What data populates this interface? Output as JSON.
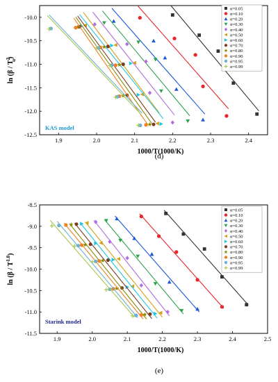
{
  "chart_data": [
    {
      "type": "scatter",
      "panel_label": "(d)",
      "model_label": "KAS model",
      "model_label_color": "#1e9ad6",
      "xlabel": "1000/T(1000/K)",
      "ylabel": "ln (β / T",
      "ylabel_sup": "2",
      "ylabel_sub": "α",
      "ylabel_close": ")",
      "xlim": [
        1.85,
        2.45
      ],
      "ylim": [
        -12.5,
        -9.75
      ],
      "xticks": [
        "1.9",
        "2.0",
        "2.1",
        "2.2",
        "2.3",
        "2.4"
      ],
      "yticks": [
        "-10.0",
        "-10.5",
        "-11.0",
        "-11.5",
        "-12.0",
        "-12.5"
      ],
      "series": [
        {
          "name": "α=0.05",
          "color": "#333333",
          "marker": "square",
          "x": [
            2.422,
            2.36,
            2.32,
            2.27,
            2.2
          ],
          "y": [
            -12.06,
            -11.4,
            -10.72,
            -10.38,
            -9.95
          ]
        },
        {
          "name": "α=0.10",
          "color": "#e8252a",
          "marker": "circle",
          "x": [
            2.342,
            2.28,
            2.26,
            2.205,
            2.114
          ],
          "y": [
            -12.1,
            -11.47,
            -10.8,
            -10.45,
            -10.01
          ]
        },
        {
          "name": "α=0.20",
          "color": "#1a58d8",
          "marker": "triangle-up",
          "x": [
            2.28,
            2.21,
            2.18,
            2.15,
            2.045
          ],
          "y": [
            -12.18,
            -11.53,
            -10.86,
            -10.5,
            -10.08
          ]
        },
        {
          "name": "α=0.30",
          "color": "#2ea34a",
          "marker": "triangle-down",
          "x": [
            2.24,
            2.17,
            2.155,
            2.11,
            2.02
          ],
          "y": [
            -12.21,
            -11.57,
            -10.9,
            -10.53,
            -10.12
          ]
        },
        {
          "name": "α=0.40",
          "color": "#b26be0",
          "marker": "diamond",
          "x": [
            2.2,
            2.14,
            2.13,
            2.08,
            1.995
          ],
          "y": [
            -12.24,
            -11.61,
            -10.94,
            -10.57,
            -10.15
          ]
        },
        {
          "name": "α=0.50",
          "color": "#d4a017",
          "marker": "triangle-left",
          "x": [
            2.16,
            2.12,
            2.1,
            2.05,
            1.97
          ],
          "y": [
            -12.26,
            -11.64,
            -10.97,
            -10.59,
            -10.17
          ]
        },
        {
          "name": "α=0.60",
          "color": "#1ec6e0",
          "marker": "triangle-right",
          "x": [
            2.17,
            2.11,
            2.09,
            2.04,
            1.96
          ],
          "y": [
            -12.27,
            -11.65,
            -10.98,
            -10.6,
            -10.19
          ]
        },
        {
          "name": "α=0.70",
          "color": "#7a3b22",
          "marker": "hexagon",
          "x": [
            2.15,
            2.08,
            2.07,
            2.03,
            1.955
          ],
          "y": [
            -12.28,
            -11.66,
            -11.0,
            -10.62,
            -10.2
          ]
        },
        {
          "name": "α=0.80",
          "color": "#8a8a00",
          "marker": "star",
          "x": [
            2.14,
            2.07,
            2.06,
            2.02,
            1.95
          ],
          "y": [
            -12.28,
            -11.67,
            -11.01,
            -10.63,
            -10.21
          ]
        },
        {
          "name": "α=0.90",
          "color": "#f08020",
          "marker": "circle",
          "x": [
            2.13,
            2.06,
            2.05,
            2.01,
            1.945
          ],
          "y": [
            -12.29,
            -11.68,
            -11.02,
            -10.64,
            -10.22
          ]
        },
        {
          "name": "α=0.95",
          "color": "#6bb0d8",
          "marker": "circle",
          "x": [
            2.115,
            2.055,
            2.04,
            2.005,
            1.88
          ],
          "y": [
            -12.3,
            -11.69,
            -11.02,
            -10.65,
            -10.24
          ]
        },
        {
          "name": "α=0.99",
          "color": "#a6c84a",
          "marker": "plus",
          "x": [
            2.11,
            2.05,
            2.035,
            2.0,
            1.875
          ],
          "y": [
            -12.3,
            -11.7,
            -11.03,
            -10.65,
            -10.25
          ]
        }
      ]
    },
    {
      "type": "scatter",
      "panel_label": "(e)",
      "model_label": "Starink model",
      "model_label_color": "#1f2a8a",
      "xlabel": "1000/T(1000/K)",
      "ylabel": "ln (β / T",
      "ylabel_sup": "1.8",
      "ylabel_sub": "",
      "ylabel_close": ")",
      "xlim": [
        1.85,
        2.5
      ],
      "ylim": [
        -11.5,
        -8.5
      ],
      "xticks": [
        "1.9",
        "2.0",
        "2.1",
        "2.2",
        "2.3",
        "2.4",
        "2.5"
      ],
      "yticks": [
        "-8.5",
        "-9.0",
        "-9.5",
        "-10.0",
        "-10.5",
        "-11.0",
        "-11.5"
      ],
      "series": [
        {
          "name": "α=0.05",
          "color": "#333333",
          "marker": "square",
          "x": [
            2.44,
            2.37,
            2.32,
            2.26,
            2.21
          ],
          "y": [
            -10.83,
            -10.18,
            -9.53,
            -9.18,
            -8.7
          ]
        },
        {
          "name": "α=0.10",
          "color": "#e8252a",
          "marker": "circle",
          "x": [
            2.37,
            2.3,
            2.24,
            2.19,
            2.14
          ],
          "y": [
            -10.88,
            -10.25,
            -9.6,
            -9.23,
            -8.77
          ]
        },
        {
          "name": "α=0.20",
          "color": "#1a58d8",
          "marker": "triangle-up",
          "x": [
            2.3,
            2.22,
            2.17,
            2.12,
            2.07
          ],
          "y": [
            -10.93,
            -10.3,
            -9.65,
            -9.28,
            -8.82
          ]
        },
        {
          "name": "α=0.30",
          "color": "#2ea34a",
          "marker": "triangle-down",
          "x": [
            2.255,
            2.18,
            2.13,
            2.08,
            2.04
          ],
          "y": [
            -10.97,
            -10.34,
            -9.7,
            -9.33,
            -8.87
          ]
        },
        {
          "name": "α=0.40",
          "color": "#b26be0",
          "marker": "diamond",
          "x": [
            2.215,
            2.14,
            2.1,
            2.05,
            2.01
          ],
          "y": [
            -11.0,
            -10.38,
            -9.74,
            -9.36,
            -8.9
          ]
        },
        {
          "name": "α=0.50",
          "color": "#d4a017",
          "marker": "triangle-left",
          "x": [
            2.195,
            2.115,
            2.075,
            2.025,
            1.985
          ],
          "y": [
            -11.02,
            -10.4,
            -9.76,
            -9.39,
            -8.92
          ]
        },
        {
          "name": "α=0.60",
          "color": "#1ec6e0",
          "marker": "triangle-right",
          "x": [
            2.18,
            2.1,
            2.06,
            2.01,
            1.97
          ],
          "y": [
            -11.04,
            -10.42,
            -9.78,
            -9.4,
            -8.94
          ]
        },
        {
          "name": "α=0.70",
          "color": "#7a3b22",
          "marker": "hexagon",
          "x": [
            2.165,
            2.085,
            2.045,
            1.995,
            1.955
          ],
          "y": [
            -11.05,
            -10.44,
            -9.79,
            -9.42,
            -8.95
          ]
        },
        {
          "name": "α=0.80",
          "color": "#8a8a00",
          "marker": "star",
          "x": [
            2.15,
            2.07,
            2.03,
            1.98,
            1.94
          ],
          "y": [
            -11.06,
            -10.45,
            -9.8,
            -9.43,
            -8.96
          ]
        },
        {
          "name": "α=0.90",
          "color": "#f08020",
          "marker": "circle",
          "x": [
            2.14,
            2.06,
            2.02,
            1.97,
            1.925
          ],
          "y": [
            -11.07,
            -10.46,
            -9.81,
            -9.44,
            -8.97
          ]
        },
        {
          "name": "α=0.95",
          "color": "#6bb0d8",
          "marker": "circle",
          "x": [
            2.125,
            2.05,
            2.01,
            1.96,
            1.905
          ],
          "y": [
            -11.08,
            -10.47,
            -9.82,
            -9.45,
            -8.98
          ]
        },
        {
          "name": "α=0.99",
          "color": "#a6c84a",
          "marker": "plus",
          "x": [
            2.115,
            2.04,
            2.0,
            1.95,
            1.885
          ],
          "y": [
            -11.09,
            -10.48,
            -9.83,
            -9.46,
            -8.99
          ]
        }
      ]
    }
  ]
}
